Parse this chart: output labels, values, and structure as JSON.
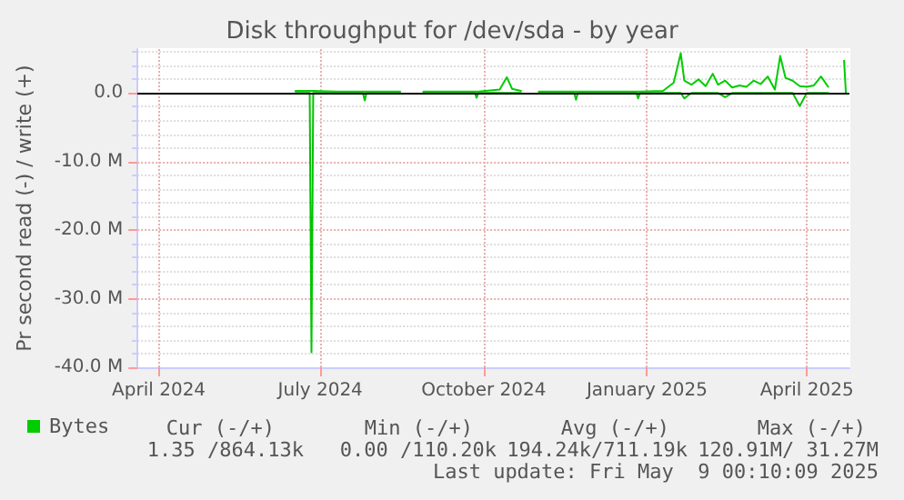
{
  "chart_data": {
    "type": "line",
    "title": "Disk throughput for /dev/sda - by year",
    "ylabel": "Pr second read (-) / write (+)",
    "x": [
      "2024-06-17",
      "2024-06-25",
      "2024-06-26",
      "2024-06-27",
      "2024-07-10",
      "2024-07-25",
      "2024-07-26",
      "2024-07-27",
      "2024-08-15",
      "2024-08-20",
      "2024-08-28",
      "2024-09-26",
      "2024-09-27",
      "2024-09-28",
      "2024-10-10",
      "2024-10-14",
      "2024-10-17",
      "2024-10-22",
      "2024-10-27",
      "2024-11-01",
      "2024-11-21",
      "2024-11-22",
      "2024-11-23",
      "2024-12-26",
      "2024-12-27",
      "2024-12-28",
      "2025-01-10",
      "2025-01-16",
      "2025-01-20",
      "2025-01-22",
      "2025-01-26",
      "2025-01-30",
      "2025-02-03",
      "2025-02-07",
      "2025-02-10",
      "2025-02-14",
      "2025-02-18",
      "2025-02-22",
      "2025-02-26",
      "2025-03-02",
      "2025-03-06",
      "2025-03-10",
      "2025-03-14",
      "2025-03-17",
      "2025-03-20",
      "2025-03-24",
      "2025-03-28",
      "2025-04-01",
      "2025-04-05",
      "2025-04-09",
      "2025-04-13",
      "2025-04-17",
      "2025-04-22",
      "2025-04-23"
    ],
    "series": [
      {
        "name": "Bytes",
        "color": "#00cc00",
        "values": [
          0.3,
          0.3,
          0.3,
          0.3,
          0.2,
          0.2,
          0.2,
          0.2,
          0.2,
          null,
          0.2,
          0.2,
          0.2,
          0.2,
          0.5,
          2.3,
          0.6,
          0.3,
          null,
          0.2,
          0.2,
          0.2,
          0.2,
          0.2,
          0.2,
          0.2,
          0.3,
          1.5,
          5.8,
          1.8,
          1.2,
          2.0,
          1.0,
          2.8,
          1.2,
          1.8,
          0.8,
          1.1,
          0.9,
          1.8,
          1.3,
          2.4,
          0.5,
          5.4,
          2.2,
          1.8,
          1.0,
          0.9,
          1.1,
          2.4,
          0.9,
          null,
          4.7,
          0
        ]
      },
      {
        "color": "#00c400",
        "values": [
          0,
          0,
          -37.8,
          0,
          0,
          0,
          -1.1,
          0,
          0,
          null,
          0,
          0,
          -0.7,
          0,
          0,
          0,
          0,
          0,
          null,
          0,
          0,
          -1.0,
          0,
          0,
          -0.8,
          0,
          0,
          0,
          0,
          -0.8,
          0,
          0,
          0,
          0,
          0,
          -0.6,
          0,
          0,
          0,
          0,
          0,
          0,
          0,
          0,
          0,
          0,
          -1.9,
          0,
          0,
          0,
          0,
          null,
          null,
          null
        ]
      }
    ],
    "xlim": [
      "2024-03-20",
      "2025-04-25"
    ],
    "xticks": [
      {
        "value": "2024-04-01",
        "label": "April 2024"
      },
      {
        "value": "2024-07-01",
        "label": "July 2024"
      },
      {
        "value": "2024-10-01",
        "label": "October 2024"
      },
      {
        "value": "2025-01-01",
        "label": "January 2025"
      },
      {
        "value": "2025-04-01",
        "label": "April 2025"
      }
    ],
    "ylim": [
      -40,
      6.4
    ],
    "yticks": [
      {
        "value": -40,
        "label": "-40.0 M"
      },
      {
        "value": -30,
        "label": "-30.0 M"
      },
      {
        "value": -20,
        "label": "-20.0 M"
      },
      {
        "value": -10,
        "label": "-10.0 M"
      },
      {
        "value": 0,
        "label": "0.0"
      }
    ],
    "ref_lines": [
      {
        "axis": "y",
        "value": 0,
        "label": null,
        "color": "#000000"
      }
    ],
    "grid": true,
    "legend": "bottom left",
    "marker": "none",
    "line_style": "solid",
    "annotations": [
      "Cur (-/+)",
      "Min (-/+)",
      "Avg (-/+)",
      "Max (-/+)",
      "1.35 /864.13k",
      "0.00 /110.20k",
      "194.24k/711.19k",
      "120.91M/ 31.27M",
      "Last update: Fri May  9 00:10:09 2025"
    ]
  }
}
